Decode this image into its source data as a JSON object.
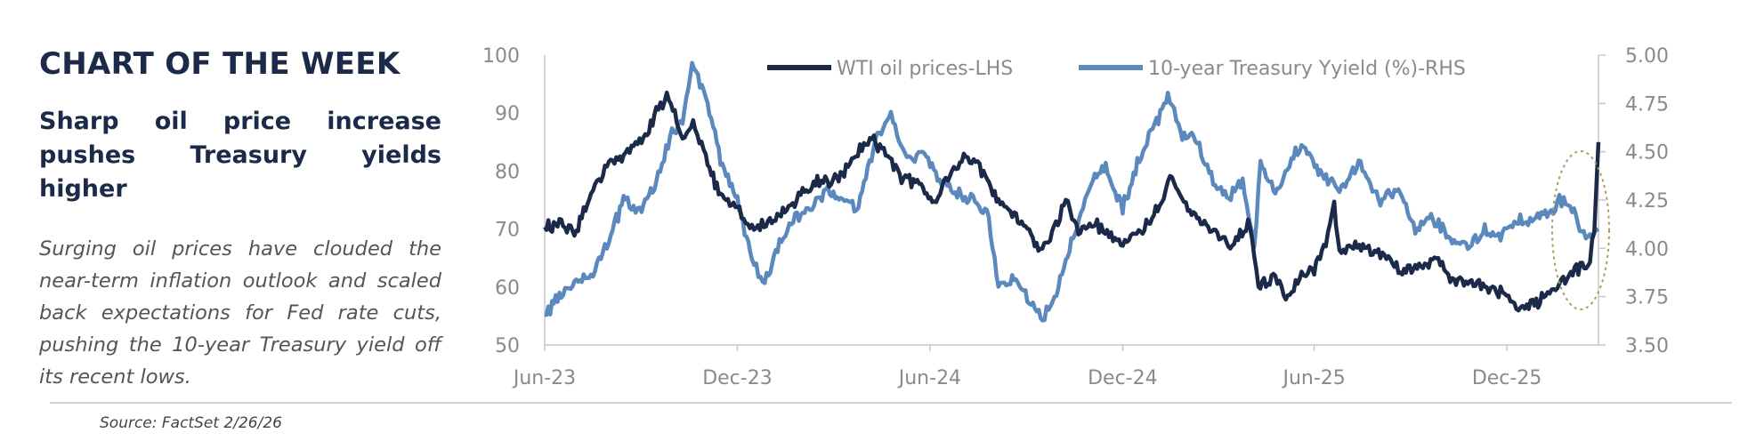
{
  "panel": {
    "heading": "CHART OF THE WEEK",
    "headline": "Sharp oil price increase pushes Treasury yields higher",
    "body": "Surging oil prices have clouded the near-term inflation outlook and scaled back expectations for Fed rate cuts, pushing the 10-year Treasury yield off its recent lows."
  },
  "source": "Source: FactSet 2/26/26",
  "chart_data": {
    "type": "line",
    "title": "",
    "xlabel": "",
    "ylabel": "",
    "x_tick_labels": [
      "Jun-23",
      "Dec-23",
      "Jun-24",
      "Dec-24",
      "Jun-25",
      "Dec-25"
    ],
    "y_left": {
      "range": [
        50,
        100
      ],
      "ticks": [
        "50",
        "60",
        "70",
        "80",
        "90",
        "100"
      ]
    },
    "y_right": {
      "range": [
        3.5,
        5.0
      ],
      "ticks": [
        "3.50",
        "3.75",
        "4.00",
        "4.25",
        "4.50",
        "4.75",
        "5.00"
      ]
    },
    "grid": false,
    "legend_position": "top",
    "highlight": "dotted ellipse around latest values (Feb-26)",
    "series": [
      {
        "name": "WTI oil prices-LHS",
        "axis": "left",
        "color": "#1b2a49",
        "points": [
          [
            "2023-06-01",
            70
          ],
          [
            "2023-06-15",
            71
          ],
          [
            "2023-07-01",
            70
          ],
          [
            "2023-07-15",
            76
          ],
          [
            "2023-08-01",
            81
          ],
          [
            "2023-08-15",
            83
          ],
          [
            "2023-09-01",
            85
          ],
          [
            "2023-09-15",
            90
          ],
          [
            "2023-09-27",
            93
          ],
          [
            "2023-10-10",
            86
          ],
          [
            "2023-10-20",
            88
          ],
          [
            "2023-11-01",
            82
          ],
          [
            "2023-11-15",
            76
          ],
          [
            "2023-12-01",
            74
          ],
          [
            "2023-12-13",
            70
          ],
          [
            "2024-01-01",
            71
          ],
          [
            "2024-01-15",
            73
          ],
          [
            "2024-02-01",
            76
          ],
          [
            "2024-02-15",
            78
          ],
          [
            "2024-03-01",
            78
          ],
          [
            "2024-03-15",
            81
          ],
          [
            "2024-04-05",
            86
          ],
          [
            "2024-04-20",
            83
          ],
          [
            "2024-05-05",
            79
          ],
          [
            "2024-05-20",
            78
          ],
          [
            "2024-06-05",
            74
          ],
          [
            "2024-06-20",
            80
          ],
          [
            "2024-07-05",
            83
          ],
          [
            "2024-07-20",
            80
          ],
          [
            "2024-08-05",
            74
          ],
          [
            "2024-08-20",
            73
          ],
          [
            "2024-09-05",
            69
          ],
          [
            "2024-09-12",
            66
          ],
          [
            "2024-09-25",
            69
          ],
          [
            "2024-10-08",
            75
          ],
          [
            "2024-10-20",
            70
          ],
          [
            "2024-11-05",
            71
          ],
          [
            "2024-11-20",
            69
          ],
          [
            "2024-12-05",
            68
          ],
          [
            "2024-12-20",
            70
          ],
          [
            "2025-01-05",
            74
          ],
          [
            "2025-01-15",
            79
          ],
          [
            "2025-02-01",
            73
          ],
          [
            "2025-02-15",
            71
          ],
          [
            "2025-03-01",
            69
          ],
          [
            "2025-03-15",
            67
          ],
          [
            "2025-04-01",
            71
          ],
          [
            "2025-04-09",
            60
          ],
          [
            "2025-04-25",
            62
          ],
          [
            "2025-05-05",
            58
          ],
          [
            "2025-05-20",
            62
          ],
          [
            "2025-06-01",
            63
          ],
          [
            "2025-06-12",
            68
          ],
          [
            "2025-06-20",
            74
          ],
          [
            "2025-06-25",
            66
          ],
          [
            "2025-07-10",
            67
          ],
          [
            "2025-08-01",
            66
          ],
          [
            "2025-08-20",
            63
          ],
          [
            "2025-09-05",
            63
          ],
          [
            "2025-09-25",
            65
          ],
          [
            "2025-10-10",
            61
          ],
          [
            "2025-10-25",
            61
          ],
          [
            "2025-11-10",
            60
          ],
          [
            "2025-11-25",
            59
          ],
          [
            "2025-12-10",
            57
          ],
          [
            "2025-12-20",
            57
          ],
          [
            "2026-01-05",
            58
          ],
          [
            "2026-01-20",
            61
          ],
          [
            "2026-02-05",
            63
          ],
          [
            "2026-02-18",
            65
          ],
          [
            "2026-02-22",
            69
          ],
          [
            "2026-02-26",
            85
          ]
        ]
      },
      {
        "name": "10-year Treasury Yyield (%)-RHS",
        "axis": "right",
        "color": "#5b88bd",
        "points": [
          [
            "2023-06-01",
            3.65
          ],
          [
            "2023-06-15",
            3.75
          ],
          [
            "2023-07-01",
            3.82
          ],
          [
            "2023-07-15",
            3.85
          ],
          [
            "2023-08-01",
            4.05
          ],
          [
            "2023-08-15",
            4.25
          ],
          [
            "2023-09-01",
            4.18
          ],
          [
            "2023-09-15",
            4.35
          ],
          [
            "2023-09-30",
            4.6
          ],
          [
            "2023-10-10",
            4.65
          ],
          [
            "2023-10-19",
            4.95
          ],
          [
            "2023-11-01",
            4.8
          ],
          [
            "2023-11-15",
            4.45
          ],
          [
            "2023-12-01",
            4.25
          ],
          [
            "2023-12-15",
            3.95
          ],
          [
            "2023-12-27",
            3.82
          ],
          [
            "2024-01-10",
            4.02
          ],
          [
            "2024-01-25",
            4.15
          ],
          [
            "2024-02-10",
            4.2
          ],
          [
            "2024-02-25",
            4.3
          ],
          [
            "2024-03-10",
            4.25
          ],
          [
            "2024-03-25",
            4.2
          ],
          [
            "2024-04-10",
            4.55
          ],
          [
            "2024-04-25",
            4.7
          ],
          [
            "2024-05-10",
            4.45
          ],
          [
            "2024-05-25",
            4.5
          ],
          [
            "2024-06-10",
            4.35
          ],
          [
            "2024-06-25",
            4.3
          ],
          [
            "2024-07-10",
            4.25
          ],
          [
            "2024-07-25",
            4.2
          ],
          [
            "2024-08-05",
            3.8
          ],
          [
            "2024-08-20",
            3.85
          ],
          [
            "2024-09-05",
            3.72
          ],
          [
            "2024-09-16",
            3.62
          ],
          [
            "2024-10-01",
            3.8
          ],
          [
            "2024-10-15",
            4.05
          ],
          [
            "2024-11-01",
            4.35
          ],
          [
            "2024-11-15",
            4.42
          ],
          [
            "2024-12-01",
            4.2
          ],
          [
            "2024-12-15",
            4.45
          ],
          [
            "2025-01-13",
            4.78
          ],
          [
            "2025-01-25",
            4.6
          ],
          [
            "2025-02-10",
            4.55
          ],
          [
            "2025-02-25",
            4.35
          ],
          [
            "2025-03-10",
            4.25
          ],
          [
            "2025-03-25",
            4.35
          ],
          [
            "2025-04-05",
            4.0
          ],
          [
            "2025-04-11",
            4.45
          ],
          [
            "2025-04-25",
            4.3
          ],
          [
            "2025-05-20",
            4.55
          ],
          [
            "2025-06-05",
            4.4
          ],
          [
            "2025-06-25",
            4.3
          ],
          [
            "2025-07-15",
            4.45
          ],
          [
            "2025-08-01",
            4.25
          ],
          [
            "2025-08-20",
            4.3
          ],
          [
            "2025-09-05",
            4.1
          ],
          [
            "2025-09-20",
            4.15
          ],
          [
            "2025-10-10",
            4.05
          ],
          [
            "2025-10-25",
            4.0
          ],
          [
            "2025-11-10",
            4.1
          ],
          [
            "2025-11-25",
            4.05
          ],
          [
            "2025-12-10",
            4.15
          ],
          [
            "2025-12-25",
            4.15
          ],
          [
            "2026-01-10",
            4.18
          ],
          [
            "2026-01-20",
            4.25
          ],
          [
            "2026-02-01",
            4.22
          ],
          [
            "2026-02-10",
            4.1
          ],
          [
            "2026-02-18",
            4.05
          ],
          [
            "2026-02-26",
            4.1
          ]
        ]
      }
    ]
  }
}
